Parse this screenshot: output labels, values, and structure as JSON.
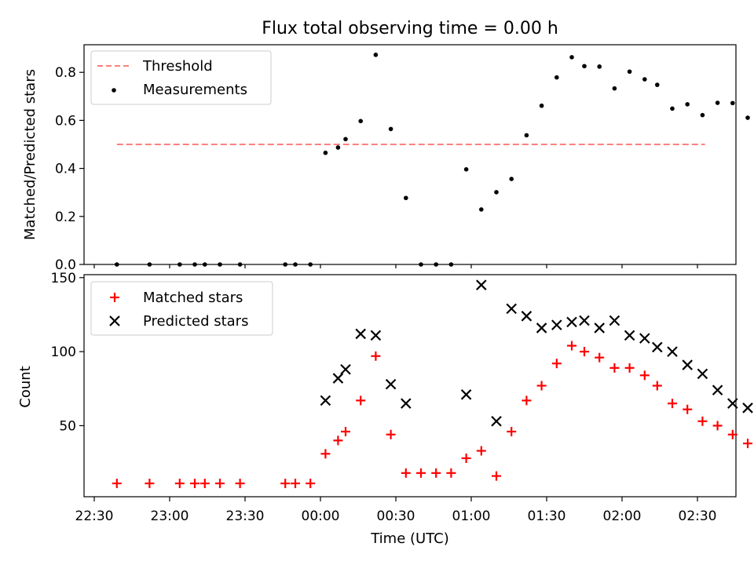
{
  "chart_data": [
    {
      "type": "scatter",
      "title": "Flux total observing time = 0.00 h",
      "xlabel": "",
      "ylabel": "Matched/Predicted stars",
      "ylim": [
        0,
        0.92
      ],
      "yticks": [
        "0.0",
        "0.2",
        "0.4",
        "0.6",
        "0.8"
      ],
      "grid": false,
      "legend_position": "upper-left",
      "series": [
        {
          "name": "Threshold",
          "kind": "line",
          "style": "dashed",
          "color": "#ff7f7f",
          "points": [
            [
              "22:39",
              0.5
            ],
            [
              "02:33",
              0.5
            ]
          ]
        },
        {
          "name": "Measurements",
          "kind": "scatter",
          "marker": "dot",
          "color": "#000000",
          "points": [
            [
              "22:39",
              0.0
            ],
            [
              "22:52",
              0.0
            ],
            [
              "23:04",
              0.0
            ],
            [
              "23:10",
              0.0
            ],
            [
              "23:14",
              0.0
            ],
            [
              "23:20",
              0.0
            ],
            [
              "23:28",
              0.0
            ],
            [
              "23:46",
              0.0
            ],
            [
              "23:50",
              0.0
            ],
            [
              "23:56",
              0.0
            ],
            [
              "00:02",
              0.465
            ],
            [
              "00:07",
              0.487
            ],
            [
              "00:10",
              0.522
            ],
            [
              "00:16",
              0.597
            ],
            [
              "00:22",
              0.873
            ],
            [
              "00:28",
              0.564
            ],
            [
              "00:34",
              0.277
            ],
            [
              "00:40",
              0.0
            ],
            [
              "00:46",
              0.0
            ],
            [
              "00:52",
              0.0
            ],
            [
              "00:58",
              0.396
            ],
            [
              "01:04",
              0.229
            ],
            [
              "01:10",
              0.301
            ],
            [
              "01:16",
              0.356
            ],
            [
              "01:22",
              0.538
            ],
            [
              "01:28",
              0.661
            ],
            [
              "01:34",
              0.779
            ],
            [
              "01:40",
              0.863
            ],
            [
              "01:45",
              0.826
            ],
            [
              "01:51",
              0.824
            ],
            [
              "01:57",
              0.733
            ],
            [
              "02:03",
              0.803
            ],
            [
              "02:09",
              0.771
            ],
            [
              "02:14",
              0.748
            ],
            [
              "02:20",
              0.649
            ],
            [
              "02:26",
              0.667
            ],
            [
              "02:32",
              0.622
            ],
            [
              "02:38",
              0.673
            ],
            [
              "02:44",
              0.672
            ],
            [
              "02:50",
              0.611
            ],
            [
              "02:56",
              0.555
            ],
            [
              "03:02",
              0.664
            ]
          ]
        }
      ]
    },
    {
      "type": "scatter",
      "title": "",
      "xlabel": "Time (UTC)",
      "ylabel": "Count",
      "ylim": [
        2,
        152
      ],
      "yticks": [
        "50",
        "100",
        "150"
      ],
      "xticks": [
        "22:30",
        "23:00",
        "23:30",
        "00:00",
        "00:30",
        "01:00",
        "01:30",
        "02:00",
        "02:30"
      ],
      "grid": false,
      "legend_position": "upper-left",
      "series": [
        {
          "name": "Matched stars",
          "kind": "scatter",
          "marker": "plus",
          "color": "#ff0000",
          "points": [
            [
              "22:39",
              11
            ],
            [
              "22:52",
              11
            ],
            [
              "23:04",
              11
            ],
            [
              "23:10",
              11
            ],
            [
              "23:14",
              11
            ],
            [
              "23:20",
              11
            ],
            [
              "23:28",
              11
            ],
            [
              "23:46",
              11
            ],
            [
              "23:50",
              11
            ],
            [
              "23:56",
              11
            ],
            [
              "00:02",
              31
            ],
            [
              "00:07",
              40
            ],
            [
              "00:10",
              46
            ],
            [
              "00:16",
              67
            ],
            [
              "00:22",
              97
            ],
            [
              "00:28",
              44
            ],
            [
              "00:34",
              18
            ],
            [
              "00:40",
              18
            ],
            [
              "00:46",
              18
            ],
            [
              "00:52",
              18
            ],
            [
              "00:58",
              28
            ],
            [
              "01:04",
              33
            ],
            [
              "01:10",
              16
            ],
            [
              "01:16",
              46
            ],
            [
              "01:22",
              67
            ],
            [
              "01:28",
              77
            ],
            [
              "01:34",
              92
            ],
            [
              "01:40",
              104
            ],
            [
              "01:45",
              100
            ],
            [
              "01:51",
              96
            ],
            [
              "01:57",
              89
            ],
            [
              "02:03",
              89
            ],
            [
              "02:09",
              84
            ],
            [
              "02:14",
              77
            ],
            [
              "02:20",
              65
            ],
            [
              "02:26",
              61
            ],
            [
              "02:32",
              53
            ],
            [
              "02:38",
              50
            ],
            [
              "02:44",
              44
            ],
            [
              "02:50",
              38
            ],
            [
              "02:56",
              25
            ],
            [
              "03:02",
              16
            ]
          ]
        },
        {
          "name": "Predicted stars",
          "kind": "scatter",
          "marker": "x",
          "color": "#000000",
          "points": [
            [
              "00:02",
              67
            ],
            [
              "00:07",
              82
            ],
            [
              "00:10",
              88
            ],
            [
              "00:16",
              112
            ],
            [
              "00:22",
              111
            ],
            [
              "00:28",
              78
            ],
            [
              "00:34",
              65
            ],
            [
              "00:58",
              71
            ],
            [
              "01:04",
              145
            ],
            [
              "01:10",
              53
            ],
            [
              "01:16",
              129
            ],
            [
              "01:22",
              124
            ],
            [
              "01:28",
              116
            ],
            [
              "01:34",
              118
            ],
            [
              "01:40",
              120
            ],
            [
              "01:45",
              121
            ],
            [
              "01:51",
              116
            ],
            [
              "01:57",
              121
            ],
            [
              "02:03",
              111
            ],
            [
              "02:09",
              109
            ],
            [
              "02:14",
              103
            ],
            [
              "02:20",
              100
            ],
            [
              "02:26",
              91
            ],
            [
              "02:32",
              85
            ],
            [
              "02:38",
              74
            ],
            [
              "02:44",
              65
            ],
            [
              "02:50",
              62
            ],
            [
              "02:56",
              45
            ],
            [
              "03:02",
              24
            ]
          ]
        }
      ]
    }
  ]
}
